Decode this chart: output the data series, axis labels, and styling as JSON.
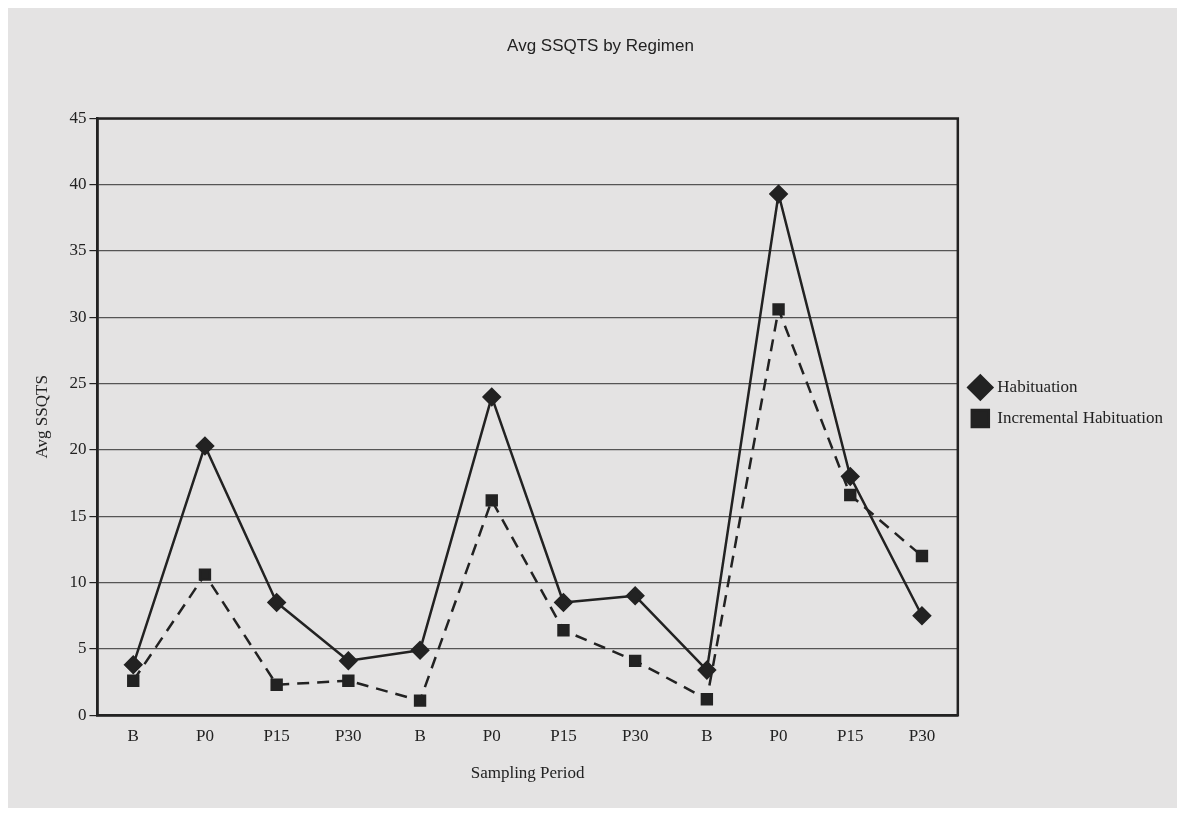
{
  "chart_data": {
    "type": "line",
    "title": "Avg SSQTS by Regimen",
    "xlabel": "Sampling Period",
    "ylabel": "Avg SSQTS",
    "categories": [
      "B",
      "P0",
      "P15",
      "P30",
      "B",
      "P0",
      "P15",
      "P30",
      "B",
      "P0",
      "P15",
      "P30"
    ],
    "series": [
      {
        "name": "Habituation",
        "color": "#222222",
        "marker": "diamond",
        "line_style": "solid",
        "values": [
          3.8,
          20.3,
          8.5,
          4.1,
          4.9,
          24.0,
          8.5,
          9.0,
          3.4,
          39.3,
          18.0,
          7.5
        ]
      },
      {
        "name": "Incremental Habituation",
        "color": "#222222",
        "marker": "square",
        "line_style": "dashed",
        "values": [
          2.6,
          10.6,
          2.3,
          2.6,
          1.1,
          16.2,
          6.4,
          4.1,
          1.2,
          30.6,
          16.6,
          12.0
        ]
      }
    ],
    "ylim": [
      0,
      45
    ],
    "yticks": [
      0,
      5,
      10,
      15,
      20,
      25,
      30,
      35,
      40,
      45
    ],
    "grid": "y",
    "legend": "right"
  }
}
